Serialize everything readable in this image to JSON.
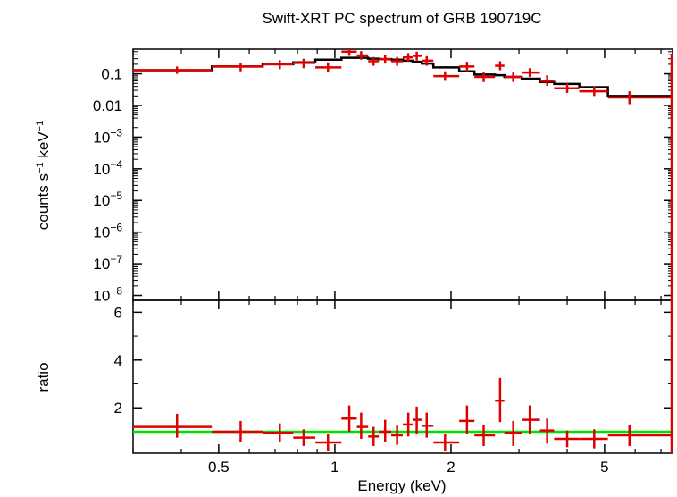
{
  "chart_data": {
    "type": "scatter",
    "title": "Swift-XRT PC spectrum of GRB 190719C",
    "xlabel": "Energy (keV)",
    "x_scale": "log",
    "xlim": [
      0.3,
      7.5
    ],
    "x_ticks": [
      {
        "value": 0.5,
        "label": "0.5"
      },
      {
        "value": 1,
        "label": "1"
      },
      {
        "value": 2,
        "label": "2"
      },
      {
        "value": 5,
        "label": "5"
      }
    ],
    "colors": {
      "data": "#e00000",
      "model": "#000000",
      "ratio_line": "#00e000"
    },
    "top_panel": {
      "ylabel_main": "counts s",
      "ylabel_sup1": "−1",
      "ylabel_mid": " keV",
      "ylabel_sup2": "−1",
      "y_scale": "log",
      "ylim": [
        7e-09,
        0.6
      ],
      "y_ticks": [
        {
          "value": 0.1,
          "base": "0.1",
          "sup": ""
        },
        {
          "value": 0.01,
          "base": "0.01",
          "sup": ""
        },
        {
          "value": 0.001,
          "base": "10",
          "sup": "−3"
        },
        {
          "value": 0.0001,
          "base": "10",
          "sup": "−4"
        },
        {
          "value": 1e-05,
          "base": "10",
          "sup": "−5"
        },
        {
          "value": 1e-06,
          "base": "10",
          "sup": "−6"
        },
        {
          "value": 1e-07,
          "base": "10",
          "sup": "−7"
        },
        {
          "value": 1e-08,
          "base": "10",
          "sup": "−8"
        }
      ],
      "data": [
        {
          "x": 0.39,
          "xlo": 0.3,
          "xhi": 0.48,
          "y": 0.13,
          "ylo": 0.1,
          "yhi": 0.17
        },
        {
          "x": 0.57,
          "xlo": 0.48,
          "xhi": 0.65,
          "y": 0.17,
          "ylo": 0.12,
          "yhi": 0.22
        },
        {
          "x": 0.72,
          "xlo": 0.65,
          "xhi": 0.78,
          "y": 0.2,
          "ylo": 0.14,
          "yhi": 0.27
        },
        {
          "x": 0.83,
          "xlo": 0.78,
          "xhi": 0.89,
          "y": 0.22,
          "ylo": 0.15,
          "yhi": 0.3
        },
        {
          "x": 0.96,
          "xlo": 0.89,
          "xhi": 1.04,
          "y": 0.16,
          "ylo": 0.11,
          "yhi": 0.23
        },
        {
          "x": 1.09,
          "xlo": 1.04,
          "xhi": 1.14,
          "y": 0.5,
          "ylo": 0.37,
          "yhi": 0.6
        },
        {
          "x": 1.17,
          "xlo": 1.14,
          "xhi": 1.22,
          "y": 0.38,
          "ylo": 0.28,
          "yhi": 0.52
        },
        {
          "x": 1.26,
          "xlo": 1.22,
          "xhi": 1.3,
          "y": 0.25,
          "ylo": 0.18,
          "yhi": 0.34
        },
        {
          "x": 1.35,
          "xlo": 1.3,
          "xhi": 1.4,
          "y": 0.29,
          "ylo": 0.21,
          "yhi": 0.4
        },
        {
          "x": 1.45,
          "xlo": 1.4,
          "xhi": 1.5,
          "y": 0.25,
          "ylo": 0.18,
          "yhi": 0.34
        },
        {
          "x": 1.55,
          "xlo": 1.5,
          "xhi": 1.59,
          "y": 0.33,
          "ylo": 0.24,
          "yhi": 0.45
        },
        {
          "x": 1.63,
          "xlo": 1.59,
          "xhi": 1.68,
          "y": 0.37,
          "ylo": 0.26,
          "yhi": 0.5
        },
        {
          "x": 1.73,
          "xlo": 1.68,
          "xhi": 1.8,
          "y": 0.26,
          "ylo": 0.18,
          "yhi": 0.36
        },
        {
          "x": 1.93,
          "xlo": 1.8,
          "xhi": 2.1,
          "y": 0.085,
          "ylo": 0.06,
          "yhi": 0.12
        },
        {
          "x": 2.2,
          "xlo": 2.1,
          "xhi": 2.3,
          "y": 0.17,
          "ylo": 0.12,
          "yhi": 0.24
        },
        {
          "x": 2.43,
          "xlo": 2.3,
          "xhi": 2.6,
          "y": 0.08,
          "ylo": 0.055,
          "yhi": 0.11
        },
        {
          "x": 2.68,
          "xlo": 2.6,
          "xhi": 2.75,
          "y": 0.18,
          "ylo": 0.13,
          "yhi": 0.25
        },
        {
          "x": 2.9,
          "xlo": 2.75,
          "xhi": 3.05,
          "y": 0.08,
          "ylo": 0.055,
          "yhi": 0.11
        },
        {
          "x": 3.2,
          "xlo": 3.05,
          "xhi": 3.4,
          "y": 0.11,
          "ylo": 0.08,
          "yhi": 0.15
        },
        {
          "x": 3.55,
          "xlo": 3.4,
          "xhi": 3.7,
          "y": 0.06,
          "ylo": 0.042,
          "yhi": 0.09
        },
        {
          "x": 4.0,
          "xlo": 3.7,
          "xhi": 4.3,
          "y": 0.035,
          "ylo": 0.025,
          "yhi": 0.05
        },
        {
          "x": 4.7,
          "xlo": 4.3,
          "xhi": 5.1,
          "y": 0.028,
          "ylo": 0.02,
          "yhi": 0.04
        },
        {
          "x": 5.8,
          "xlo": 5.1,
          "xhi": 7.5,
          "y": 0.018,
          "ylo": 0.011,
          "yhi": 0.028
        }
      ],
      "model": [
        {
          "xlo": 0.3,
          "xhi": 0.48,
          "y": 0.13
        },
        {
          "xlo": 0.48,
          "xhi": 0.65,
          "y": 0.17
        },
        {
          "xlo": 0.65,
          "xhi": 0.78,
          "y": 0.2
        },
        {
          "xlo": 0.78,
          "xhi": 0.89,
          "y": 0.23
        },
        {
          "xlo": 0.89,
          "xhi": 1.04,
          "y": 0.28
        },
        {
          "xlo": 1.04,
          "xhi": 1.14,
          "y": 0.32
        },
        {
          "xlo": 1.14,
          "xhi": 1.22,
          "y": 0.32
        },
        {
          "xlo": 1.22,
          "xhi": 1.3,
          "y": 0.3
        },
        {
          "xlo": 1.3,
          "xhi": 1.4,
          "y": 0.29
        },
        {
          "xlo": 1.4,
          "xhi": 1.5,
          "y": 0.28
        },
        {
          "xlo": 1.5,
          "xhi": 1.59,
          "y": 0.26
        },
        {
          "xlo": 1.59,
          "xhi": 1.68,
          "y": 0.24
        },
        {
          "xlo": 1.68,
          "xhi": 1.8,
          "y": 0.21
        },
        {
          "xlo": 1.8,
          "xhi": 2.1,
          "y": 0.16
        },
        {
          "xlo": 2.1,
          "xhi": 2.3,
          "y": 0.12
        },
        {
          "xlo": 2.3,
          "xhi": 2.6,
          "y": 0.095
        },
        {
          "xlo": 2.6,
          "xhi": 2.75,
          "y": 0.09
        },
        {
          "xlo": 2.75,
          "xhi": 3.05,
          "y": 0.08
        },
        {
          "xlo": 3.05,
          "xhi": 3.4,
          "y": 0.07
        },
        {
          "xlo": 3.4,
          "xhi": 3.7,
          "y": 0.055
        },
        {
          "xlo": 3.7,
          "xhi": 4.3,
          "y": 0.048
        },
        {
          "xlo": 4.3,
          "xhi": 5.1,
          "y": 0.038
        },
        {
          "xlo": 5.1,
          "xhi": 7.5,
          "y": 0.02
        }
      ]
    },
    "bottom_panel": {
      "ylabel": "ratio",
      "y_scale": "linear",
      "ylim": [
        0.1,
        6.5
      ],
      "y_ticks": [
        {
          "value": 2,
          "label": "2"
        },
        {
          "value": 4,
          "label": "4"
        },
        {
          "value": 6,
          "label": "6"
        }
      ],
      "reference_line": 1,
      "data": [
        {
          "x": 0.39,
          "xlo": 0.3,
          "xhi": 0.48,
          "y": 1.2,
          "ylo": 0.75,
          "yhi": 1.75
        },
        {
          "x": 0.57,
          "xlo": 0.48,
          "xhi": 0.65,
          "y": 1.0,
          "ylo": 0.55,
          "yhi": 1.45
        },
        {
          "x": 0.72,
          "xlo": 0.65,
          "xhi": 0.78,
          "y": 0.95,
          "ylo": 0.55,
          "yhi": 1.35
        },
        {
          "x": 0.83,
          "xlo": 0.78,
          "xhi": 0.89,
          "y": 0.75,
          "ylo": 0.4,
          "yhi": 1.1
        },
        {
          "x": 0.96,
          "xlo": 0.89,
          "xhi": 1.04,
          "y": 0.55,
          "ylo": 0.2,
          "yhi": 0.9
        },
        {
          "x": 1.09,
          "xlo": 1.04,
          "xhi": 1.14,
          "y": 1.55,
          "ylo": 1.0,
          "yhi": 2.1
        },
        {
          "x": 1.17,
          "xlo": 1.14,
          "xhi": 1.22,
          "y": 1.2,
          "ylo": 0.7,
          "yhi": 1.8
        },
        {
          "x": 1.26,
          "xlo": 1.22,
          "xhi": 1.3,
          "y": 0.8,
          "ylo": 0.4,
          "yhi": 1.2
        },
        {
          "x": 1.35,
          "xlo": 1.3,
          "xhi": 1.4,
          "y": 1.0,
          "ylo": 0.55,
          "yhi": 1.5
        },
        {
          "x": 1.45,
          "xlo": 1.4,
          "xhi": 1.5,
          "y": 0.85,
          "ylo": 0.45,
          "yhi": 1.25
        },
        {
          "x": 1.55,
          "xlo": 1.5,
          "xhi": 1.59,
          "y": 1.3,
          "ylo": 0.8,
          "yhi": 1.8
        },
        {
          "x": 1.63,
          "xlo": 1.59,
          "xhi": 1.68,
          "y": 1.5,
          "ylo": 0.9,
          "yhi": 2.05
        },
        {
          "x": 1.73,
          "xlo": 1.68,
          "xhi": 1.8,
          "y": 1.25,
          "ylo": 0.75,
          "yhi": 1.8
        },
        {
          "x": 1.93,
          "xlo": 1.8,
          "xhi": 2.1,
          "y": 0.55,
          "ylo": 0.2,
          "yhi": 0.9
        },
        {
          "x": 2.2,
          "xlo": 2.1,
          "xhi": 2.3,
          "y": 1.45,
          "ylo": 0.9,
          "yhi": 2.1
        },
        {
          "x": 2.43,
          "xlo": 2.3,
          "xhi": 2.6,
          "y": 0.85,
          "ylo": 0.4,
          "yhi": 1.3
        },
        {
          "x": 2.68,
          "xlo": 2.6,
          "xhi": 2.75,
          "y": 2.3,
          "ylo": 1.4,
          "yhi": 3.25
        },
        {
          "x": 2.9,
          "xlo": 2.75,
          "xhi": 3.05,
          "y": 0.95,
          "ylo": 0.4,
          "yhi": 1.45
        },
        {
          "x": 3.2,
          "xlo": 3.05,
          "xhi": 3.4,
          "y": 1.5,
          "ylo": 0.9,
          "yhi": 2.1
        },
        {
          "x": 3.55,
          "xlo": 3.4,
          "xhi": 3.7,
          "y": 1.05,
          "ylo": 0.5,
          "yhi": 1.55
        },
        {
          "x": 4.0,
          "xlo": 3.7,
          "xhi": 4.3,
          "y": 0.7,
          "ylo": 0.35,
          "yhi": 1.05
        },
        {
          "x": 4.7,
          "xlo": 4.3,
          "xhi": 5.1,
          "y": 0.7,
          "ylo": 0.3,
          "yhi": 1.1
        },
        {
          "x": 5.8,
          "xlo": 5.1,
          "xhi": 7.5,
          "y": 0.85,
          "ylo": 0.4,
          "yhi": 1.3
        }
      ]
    }
  }
}
